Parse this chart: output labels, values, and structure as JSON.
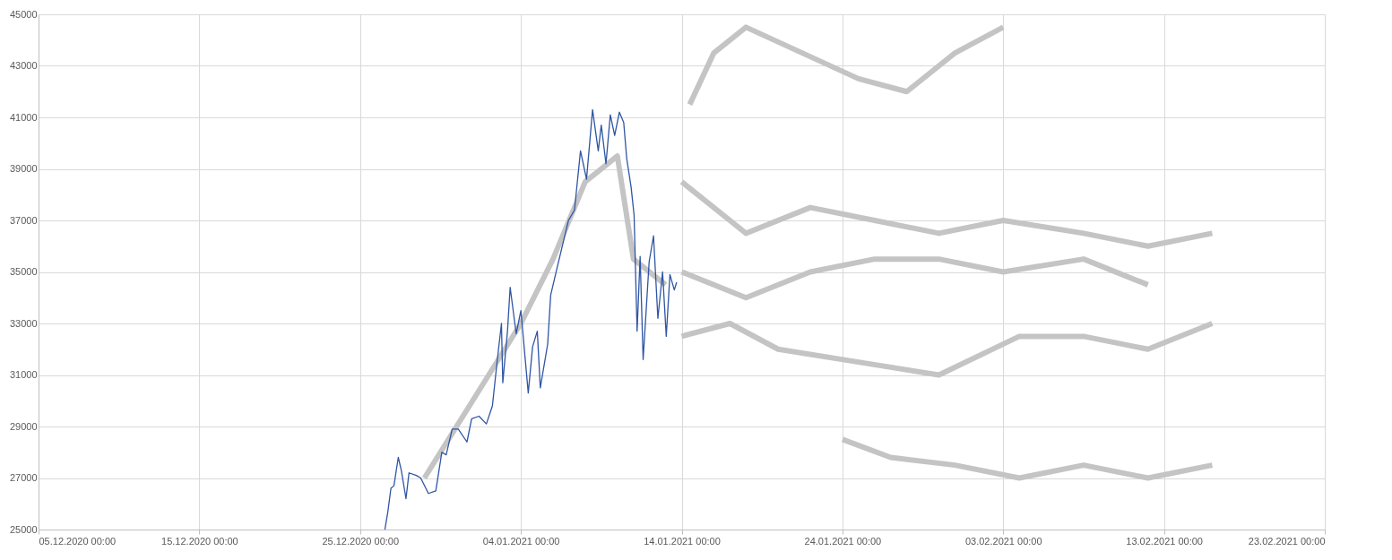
{
  "chart_data": {
    "type": "line",
    "xlim": [
      "2020-12-05",
      "2021-02-23"
    ],
    "xticks": [
      {
        "value": "2020-12-05",
        "label": "05.12.2020 00:00"
      },
      {
        "value": "2020-12-15",
        "label": "15.12.2020 00:00"
      },
      {
        "value": "2020-12-25",
        "label": "25.12.2020 00:00"
      },
      {
        "value": "2021-01-04",
        "label": "04.01.2021 00:00"
      },
      {
        "value": "2021-01-14",
        "label": "14.01.2021 00:00"
      },
      {
        "value": "2021-01-24",
        "label": "24.01.2021 00:00"
      },
      {
        "value": "2021-02-03",
        "label": "03.02.2021 00:00"
      },
      {
        "value": "2021-02-13",
        "label": "13.02.2021 00:00"
      },
      {
        "value": "2021-02-23",
        "label": "23.02.2021 00:00"
      }
    ],
    "ylim": [
      25000,
      45000
    ],
    "yticks": [
      25000,
      27000,
      29000,
      31000,
      33000,
      35000,
      37000,
      39000,
      41000,
      43000,
      45000
    ],
    "grid": true,
    "line_style": "solid",
    "marker": "none",
    "series": [
      {
        "color": "#c4c4c4",
        "x": [
          "2020-12-29",
          "2021-01-01",
          "2021-01-04",
          "2021-01-06",
          "2021-01-08",
          "2021-01-10",
          "2021-01-11",
          "2021-01-13"
        ],
        "values": [
          27000,
          30000,
          33000,
          35500,
          38500,
          39500,
          35500,
          34500
        ]
      },
      {
        "color": "#c4c4c4",
        "x": [
          "2021-01-14T12:00",
          "2021-01-16",
          "2021-01-18",
          "2021-01-25",
          "2021-01-28",
          "2021-01-31",
          "2021-02-03"
        ],
        "values": [
          41500,
          43500,
          44500,
          42500,
          42000,
          43500,
          44500
        ]
      },
      {
        "color": "#c4c4c4",
        "x": [
          "2021-01-14",
          "2021-01-18",
          "2021-01-22",
          "2021-01-26",
          "2021-01-30",
          "2021-02-03",
          "2021-02-08",
          "2021-02-12",
          "2021-02-16"
        ],
        "values": [
          38500,
          36500,
          37500,
          37000,
          36500,
          37000,
          36500,
          36000,
          36500
        ]
      },
      {
        "color": "#c4c4c4",
        "x": [
          "2021-01-14",
          "2021-01-18",
          "2021-01-22",
          "2021-01-26",
          "2021-01-30",
          "2021-02-03",
          "2021-02-08",
          "2021-02-12"
        ],
        "values": [
          35000,
          34000,
          35000,
          35500,
          35500,
          35000,
          35500,
          34500
        ]
      },
      {
        "color": "#c4c4c4",
        "x": [
          "2021-01-14",
          "2021-01-17",
          "2021-01-20",
          "2021-01-25",
          "2021-01-30",
          "2021-02-04",
          "2021-02-08",
          "2021-02-12",
          "2021-02-16"
        ],
        "values": [
          32500,
          33000,
          32000,
          31500,
          31000,
          32500,
          32500,
          32000,
          33000
        ]
      },
      {
        "color": "#c4c4c4",
        "x": [
          "2021-01-24",
          "2021-01-27",
          "2021-01-31",
          "2021-02-04",
          "2021-02-08",
          "2021-02-12",
          "2021-02-16"
        ],
        "values": [
          28500,
          27800,
          27500,
          27000,
          27500,
          27000,
          27500
        ]
      },
      {
        "color": "#2f55a4",
        "x": [
          "2020-12-26T13:00",
          "2020-12-26T17:30",
          "2020-12-26T22:00",
          "2020-12-27T02:30",
          "2020-12-27T09:00",
          "2020-12-27T13:30",
          "2020-12-27T20:30",
          "2020-12-28T01:00",
          "2020-12-28T12:00",
          "2020-12-28T18:30",
          "2020-12-29T06:00",
          "2020-12-29T17:00",
          "2020-12-30T02:00",
          "2020-12-30T08:30",
          "2020-12-30T17:30",
          "2020-12-31T02:30",
          "2020-12-31T15:30",
          "2020-12-31T22:30",
          "2021-01-01T09:30",
          "2021-01-01T20:30",
          "2021-01-02T05:30",
          "2021-01-02T12:00",
          "2021-01-02T19:00",
          "2021-01-02T21:00",
          "2021-01-03T04:00",
          "2021-01-03T08:00",
          "2021-01-03T17:00",
          "2021-01-04T00:00",
          "2021-01-04T11:00",
          "2021-01-04T17:30",
          "2021-01-05T00:30",
          "2021-01-05T05:00",
          "2021-01-05T16:00",
          "2021-01-05T20:30",
          "2021-01-06T05:30",
          "2021-01-06T23:00",
          "2021-01-07T08:00",
          "2021-01-07T17:00",
          "2021-01-08T02:00",
          "2021-01-08T11:00",
          "2021-01-08T19:30",
          "2021-01-09T00:00",
          "2021-01-09T07:00",
          "2021-01-09T13:30",
          "2021-01-09T20:00",
          "2021-01-10T03:00",
          "2021-01-10T09:30",
          "2021-01-10T14:00",
          "2021-01-10T20:30",
          "2021-01-11T01:00",
          "2021-01-11T05:30",
          "2021-01-11T10:00",
          "2021-01-11T14:30",
          "2021-01-11T23:30",
          "2021-01-12T06:00",
          "2021-01-12T12:30",
          "2021-01-12T19:30",
          "2021-01-13T01:00",
          "2021-01-13T06:30",
          "2021-01-13T13:00",
          "2021-01-13T16:30"
        ],
        "values": [
          25000,
          25700,
          26600,
          26700,
          27800,
          27300,
          26200,
          27200,
          27100,
          27000,
          26400,
          26500,
          28000,
          27900,
          28900,
          28900,
          28400,
          29300,
          29400,
          29100,
          29800,
          31400,
          33000,
          30700,
          32700,
          34400,
          32600,
          33500,
          30300,
          32100,
          32700,
          30500,
          32200,
          34100,
          35100,
          37000,
          37400,
          39700,
          38600,
          41300,
          39700,
          40700,
          39200,
          41100,
          40300,
          41200,
          40800,
          39400,
          38300,
          37200,
          32700,
          35600,
          31600,
          35400,
          36400,
          33200,
          35000,
          32500,
          34900,
          34300,
          34600
        ]
      }
    ]
  }
}
